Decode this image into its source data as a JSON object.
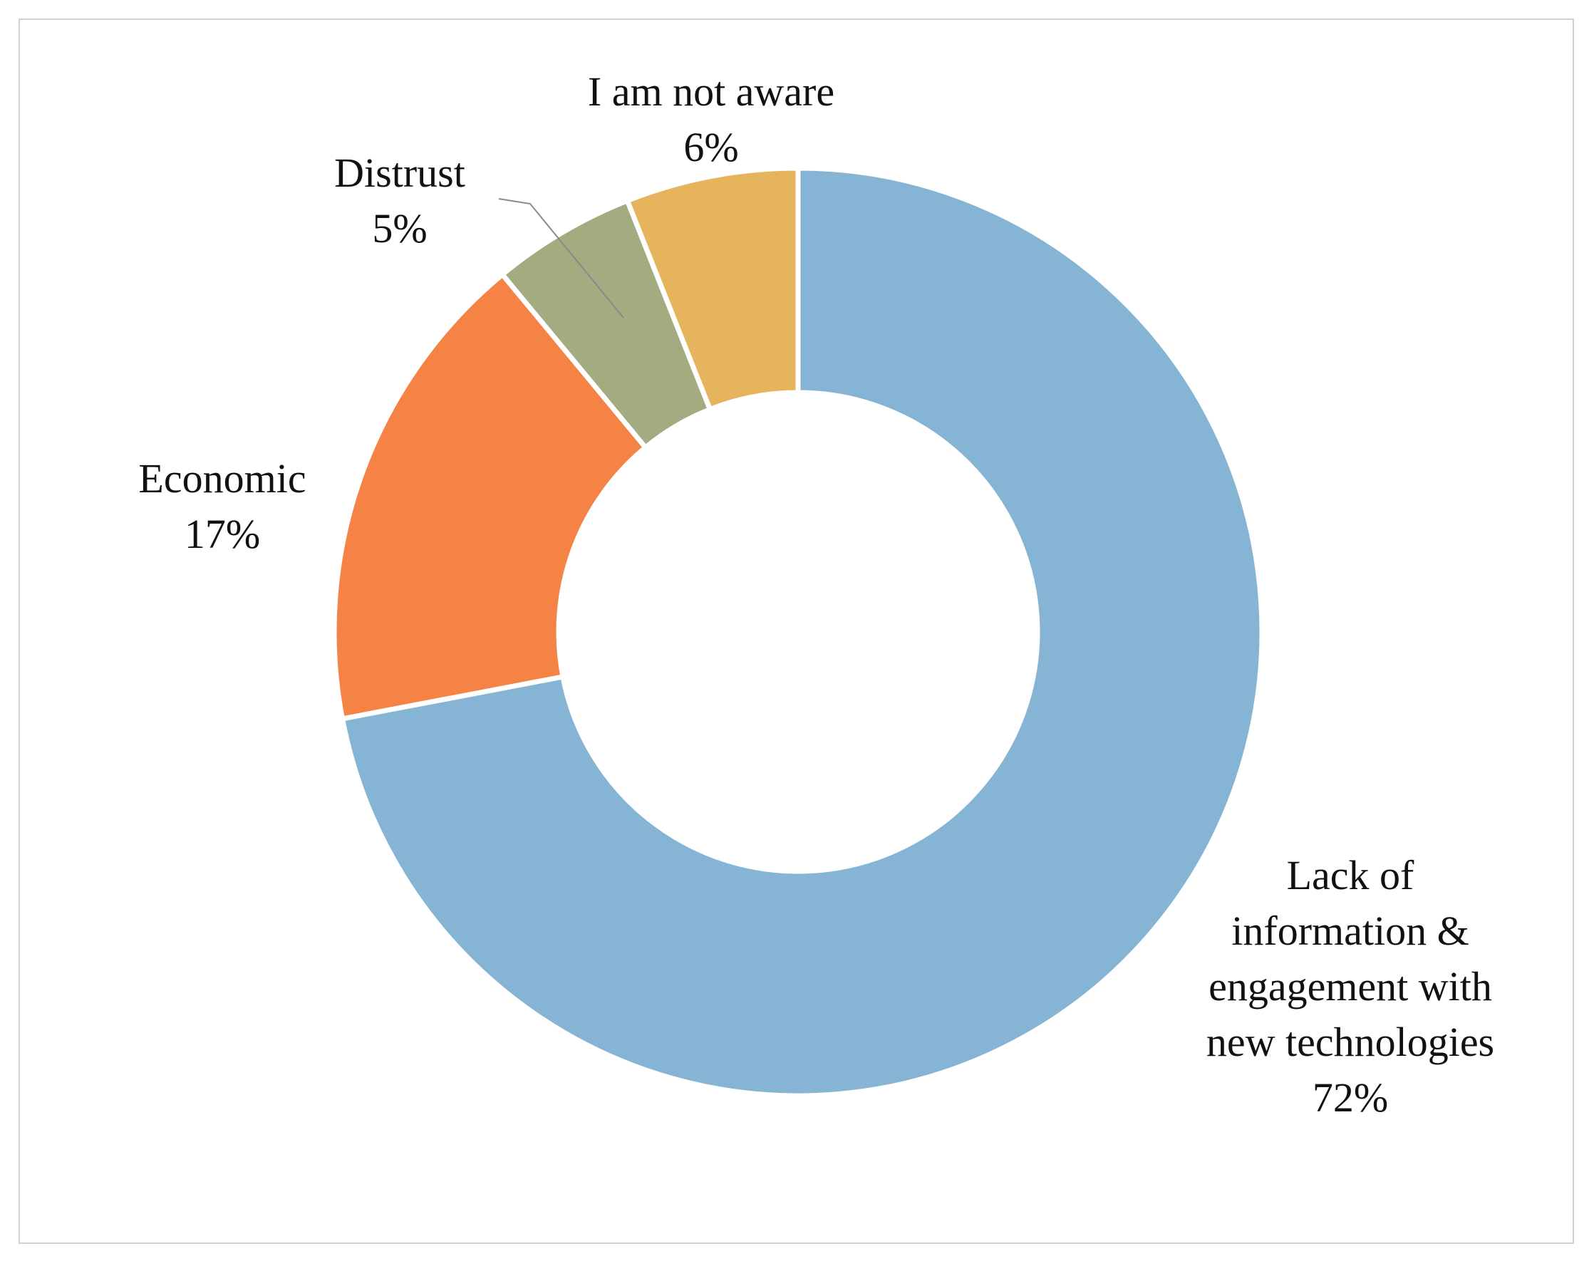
{
  "chart_data": {
    "type": "donut",
    "categories": [
      "Lack of information & engagement with new technologies",
      "Economic",
      "Distrust",
      "I am not aware"
    ],
    "values": [
      72,
      17,
      5,
      6
    ],
    "value_labels": [
      "72%",
      "17%",
      "5%",
      "6%"
    ],
    "colors": [
      "#86b4d4",
      "#f58345",
      "#a3ab80",
      "#e6b45c"
    ]
  }
}
